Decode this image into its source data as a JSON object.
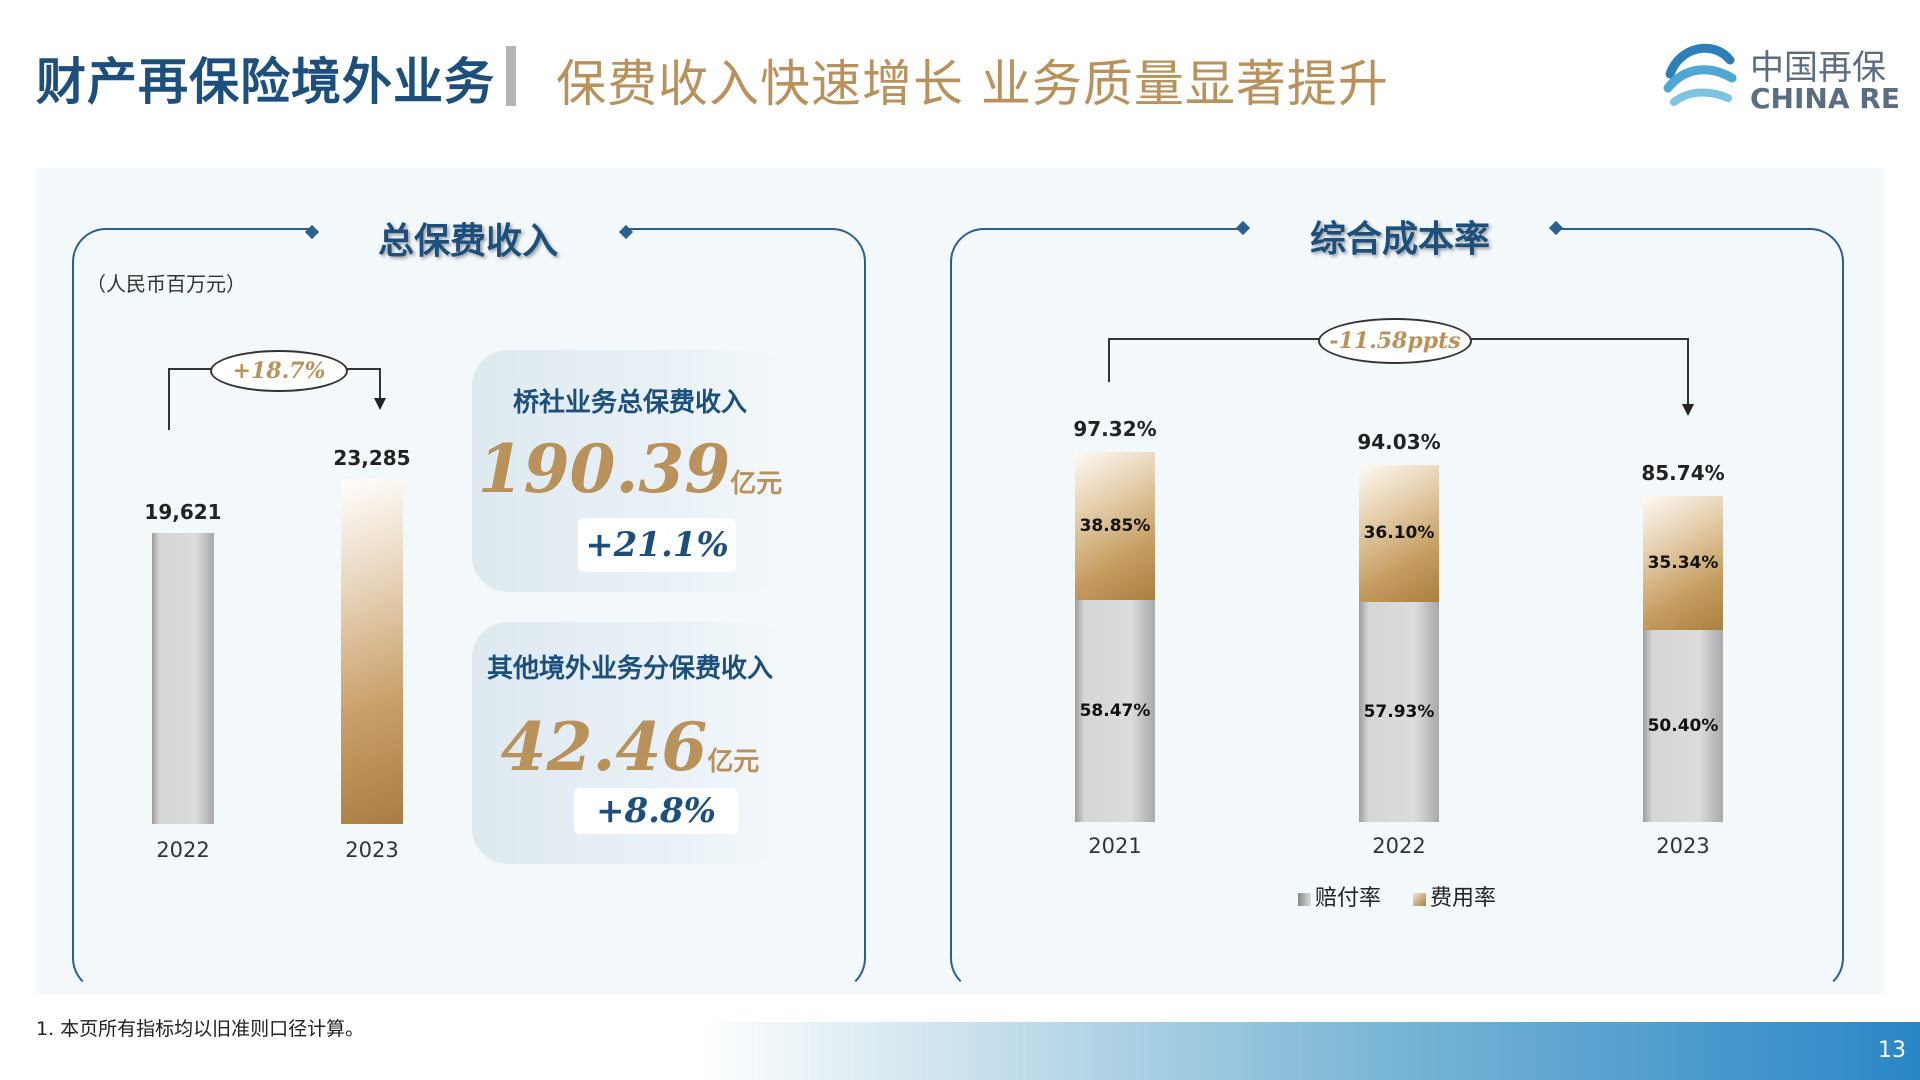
{
  "header": {
    "title": "财产再保险境外业务",
    "subtitle": "保费收入快速增长  业务质量显著提升"
  },
  "logo": {
    "cn": "中国再保",
    "en": "CHINA RE",
    "icon": "china-re-wave-icon"
  },
  "left_panel": {
    "title": "总保费收入",
    "unit": "（人民币百万元）",
    "growth": "+18.7%",
    "cards": [
      {
        "title": "桥社业务总保费收入",
        "value": "190.39",
        "unit": "亿元",
        "growth": "+21.1%"
      },
      {
        "title": "其他境外业务分保费收入",
        "value": "42.46",
        "unit": "亿元",
        "growth": "+8.8%"
      }
    ]
  },
  "right_panel": {
    "title": "综合成本率",
    "change": "-11.58ppts",
    "legend": [
      "赔付率",
      "费用率"
    ]
  },
  "chart_data": [
    {
      "type": "bar",
      "title": "总保费收入",
      "categories": [
        "2022",
        "2023"
      ],
      "values": [
        19621,
        23285
      ],
      "value_labels": [
        "19,621",
        "23,285"
      ],
      "ylim": [
        0,
        25000
      ]
    },
    {
      "type": "bar",
      "stacked": true,
      "title": "综合成本率",
      "categories": [
        "2021",
        "2022",
        "2023"
      ],
      "totals": [
        97.32,
        94.03,
        85.74
      ],
      "total_labels": [
        "97.32%",
        "94.03%",
        "85.74%"
      ],
      "series": [
        {
          "name": "赔付率",
          "values": [
            58.47,
            57.93,
            50.4
          ],
          "labels": [
            "58.47%",
            "57.93%",
            "50.40%"
          ]
        },
        {
          "name": "费用率",
          "values": [
            38.85,
            36.1,
            35.34
          ],
          "labels": [
            "38.85%",
            "36.10%",
            "35.34%"
          ]
        }
      ],
      "ylim": [
        0,
        100
      ]
    }
  ],
  "footnote": "1.  本页所有指标均以旧准则口径计算。",
  "page_number": "13",
  "colors": {
    "navy": "#1d4f7c",
    "gold": "#b8925a",
    "grey_bar": "#d6d6d6"
  }
}
